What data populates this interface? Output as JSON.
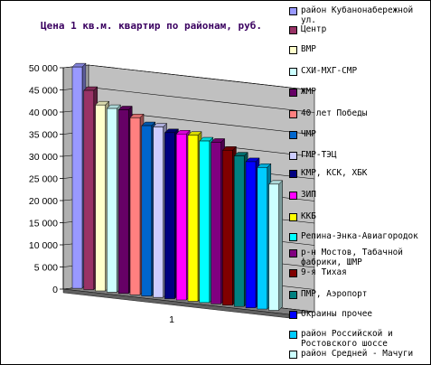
{
  "chart_data": {
    "type": "bar",
    "title": "Цена 1 кв.м. квартир по районам, руб.",
    "categories": [
      "1"
    ],
    "ylim": [
      0,
      50000
    ],
    "yticks": [
      "0",
      "5 000",
      "10 000",
      "15 000",
      "20 000",
      "25 000",
      "30 000",
      "35 000",
      "40 000",
      "45 000",
      "50 000"
    ],
    "grid": true,
    "legend_position": "right",
    "series": [
      {
        "name": "район Кубанонабережной ул.",
        "values": [
          50000
        ],
        "color": "#9999ff"
      },
      {
        "name": "Центр",
        "values": [
          45000
        ],
        "color": "#993366"
      },
      {
        "name": "ВМР",
        "values": [
          42000
        ],
        "color": "#ffffcc"
      },
      {
        "name": "СХИ-МХГ-СМР",
        "values": [
          41500
        ],
        "color": "#ccffff"
      },
      {
        "name": "ЖМР",
        "values": [
          41500
        ],
        "color": "#660066"
      },
      {
        "name": "40 лет Победы",
        "values": [
          40000
        ],
        "color": "#ff8080"
      },
      {
        "name": "ЧМР",
        "values": [
          38500
        ],
        "color": "#0066cc"
      },
      {
        "name": "ГМР-ТЭЦ",
        "values": [
          38500
        ],
        "color": "#ccccff"
      },
      {
        "name": "КМР, КСК, ХБК",
        "values": [
          37500
        ],
        "color": "#000080"
      },
      {
        "name": "ЗИП",
        "values": [
          37500
        ],
        "color": "#ff00ff"
      },
      {
        "name": "ККБ",
        "values": [
          37500
        ],
        "color": "#ffff00"
      },
      {
        "name": "Репина-Энка-Авиагородок",
        "values": [
          36500
        ],
        "color": "#00ffff"
      },
      {
        "name": "р-н Мостов, Табачной фабрики, ШМР",
        "values": [
          36500
        ],
        "color": "#800080"
      },
      {
        "name": "9-я Тихая",
        "values": [
          35000
        ],
        "color": "#800000"
      },
      {
        "name": "ПМР, Аэропорт",
        "values": [
          34000
        ],
        "color": "#008080"
      },
      {
        "name": "Окраины прочее",
        "values": [
          33000
        ],
        "color": "#0000ff"
      },
      {
        "name": "район Российской и Ростовского шоссе",
        "values": [
          32000
        ],
        "color": "#00ccff"
      },
      {
        "name": "район Средней - Мачуги",
        "values": [
          28500
        ],
        "color": "#ccffff"
      }
    ]
  }
}
